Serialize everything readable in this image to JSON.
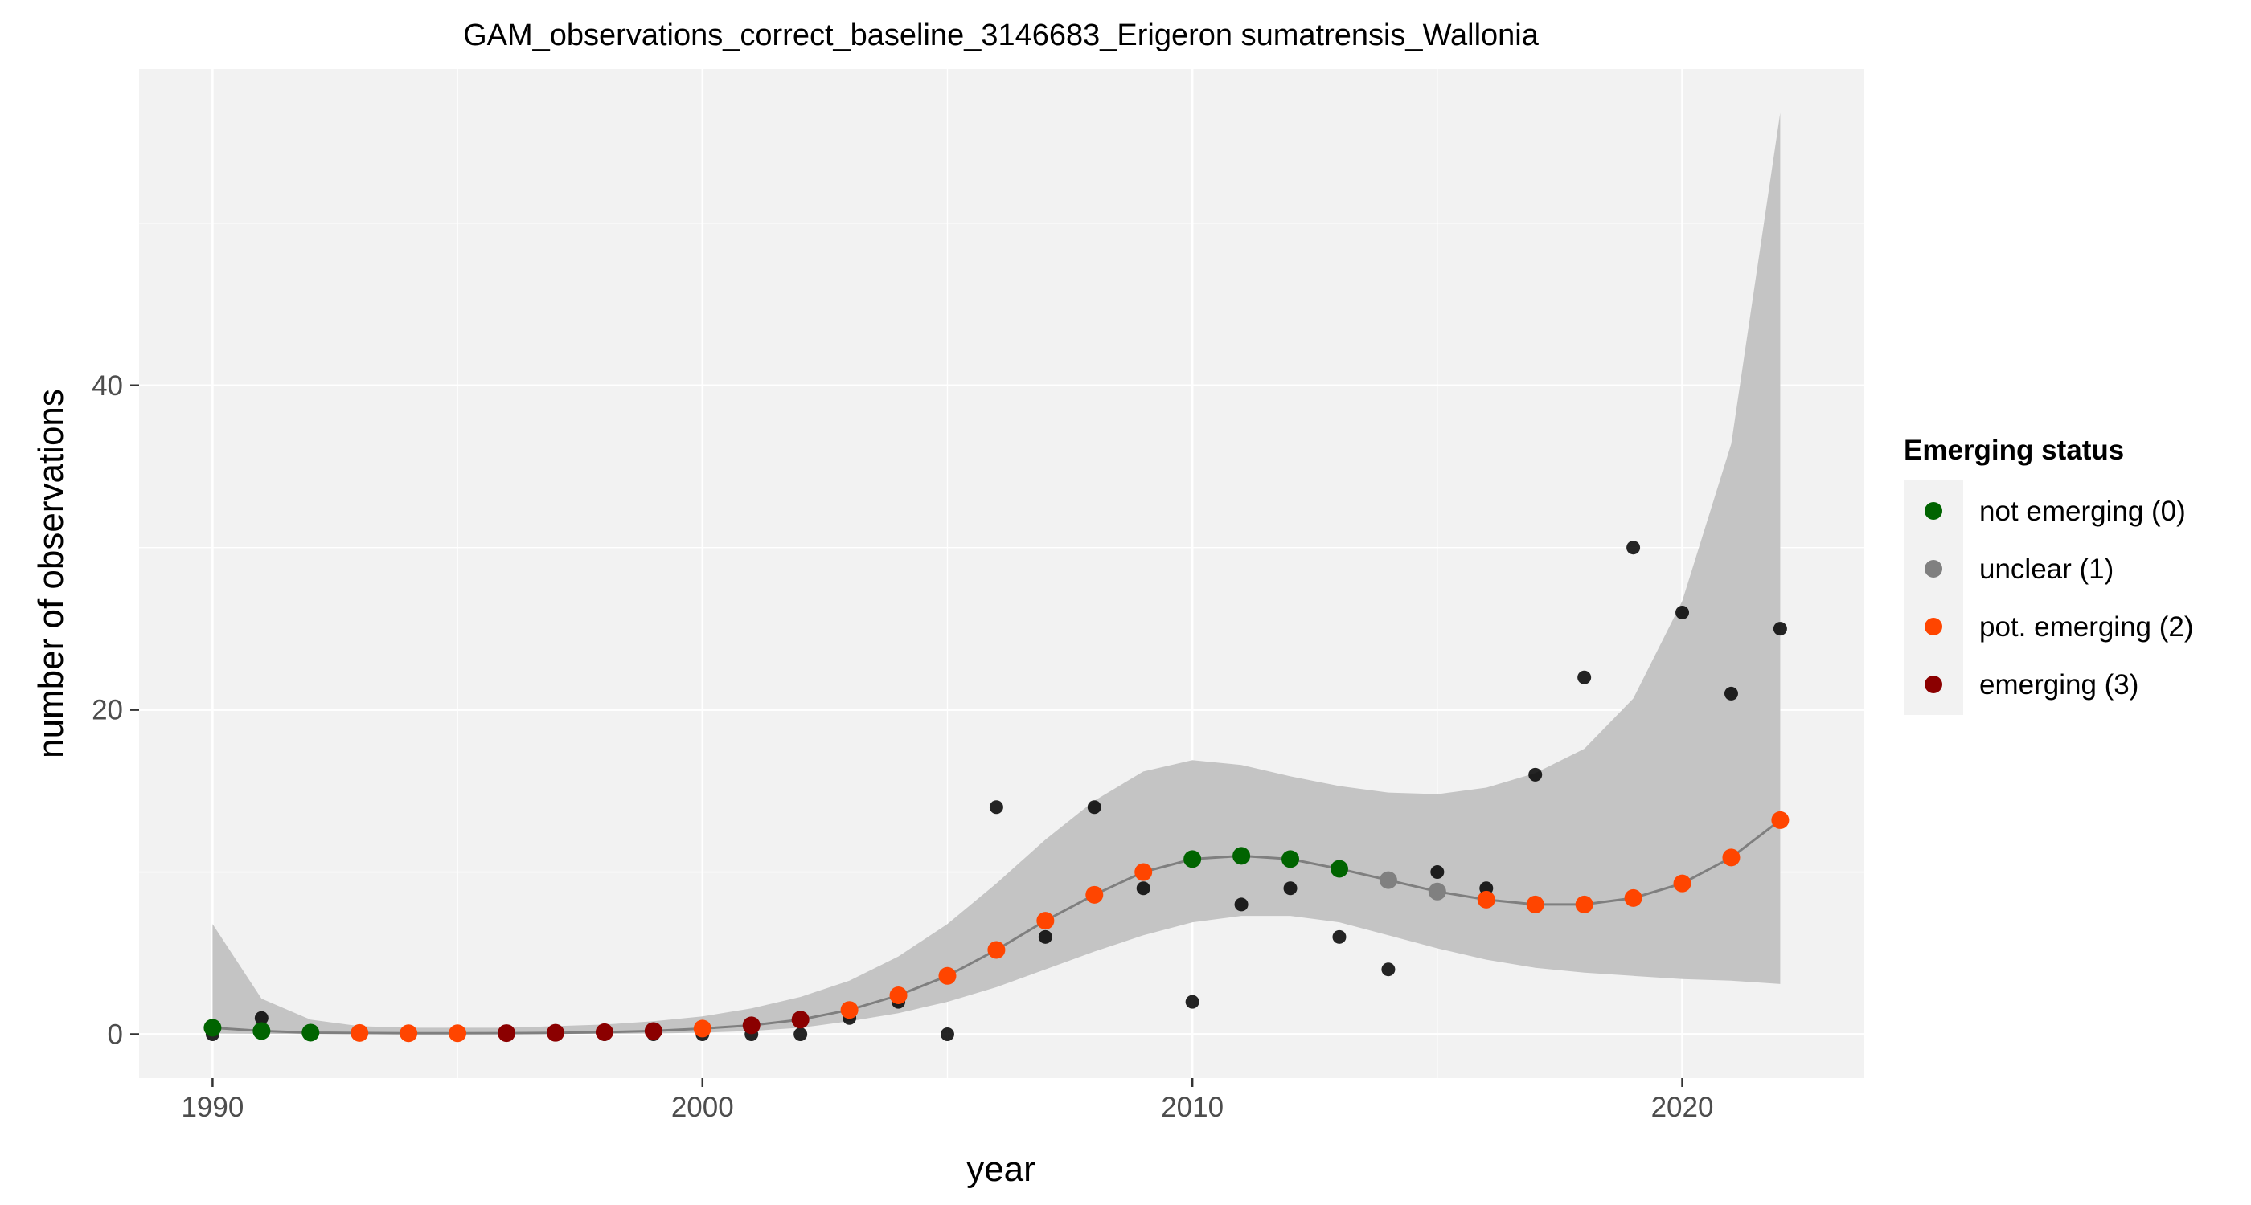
{
  "chart_data": {
    "type": "scatter",
    "title": "GAM_observations_correct_baseline_3146683_Erigeron sumatrensis_Wallonia",
    "xlabel": "year",
    "ylabel": "number of observations",
    "xlim": [
      1988.5,
      2023.7
    ],
    "ylim": [
      -2.7,
      59.5
    ],
    "x_ticks": [
      1990,
      2000,
      2010,
      2020
    ],
    "y_ticks": [
      0,
      20,
      40
    ],
    "grid": true,
    "legend": {
      "title": "Emerging status",
      "placement": "right",
      "entries": [
        {
          "label": "not emerging (0)",
          "color": "#006400"
        },
        {
          "label": "unclear (1)",
          "color": "#808080"
        },
        {
          "label": "pot. emerging (2)",
          "color": "#FF4500"
        },
        {
          "label": "emerging (3)",
          "color": "#8B0000"
        }
      ]
    },
    "observations": [
      {
        "x": 1990,
        "y": 0
      },
      {
        "x": 1991,
        "y": 1
      },
      {
        "x": 1992,
        "y": 0
      },
      {
        "x": 1993,
        "y": 0
      },
      {
        "x": 1994,
        "y": 0
      },
      {
        "x": 1995,
        "y": 0
      },
      {
        "x": 1996,
        "y": 0
      },
      {
        "x": 1997,
        "y": 0
      },
      {
        "x": 1998,
        "y": 0
      },
      {
        "x": 1999,
        "y": 0
      },
      {
        "x": 2000,
        "y": 0
      },
      {
        "x": 2001,
        "y": 0
      },
      {
        "x": 2002,
        "y": 0
      },
      {
        "x": 2003,
        "y": 1
      },
      {
        "x": 2004,
        "y": 2
      },
      {
        "x": 2005,
        "y": 0
      },
      {
        "x": 2006,
        "y": 14
      },
      {
        "x": 2007,
        "y": 6
      },
      {
        "x": 2008,
        "y": 14
      },
      {
        "x": 2009,
        "y": 9
      },
      {
        "x": 2010,
        "y": 2
      },
      {
        "x": 2011,
        "y": 8
      },
      {
        "x": 2012,
        "y": 9
      },
      {
        "x": 2013,
        "y": 6
      },
      {
        "x": 2014,
        "y": 4
      },
      {
        "x": 2015,
        "y": 10
      },
      {
        "x": 2016,
        "y": 9
      },
      {
        "x": 2017,
        "y": 16
      },
      {
        "x": 2018,
        "y": 22
      },
      {
        "x": 2019,
        "y": 30
      },
      {
        "x": 2020,
        "y": 26
      },
      {
        "x": 2021,
        "y": 21
      },
      {
        "x": 2022,
        "y": 25
      }
    ],
    "fit": [
      {
        "x": 1990,
        "y": 0.4,
        "lower": 0.05,
        "upper": 6.8,
        "status": 0
      },
      {
        "x": 1991,
        "y": 0.2,
        "lower": 0.03,
        "upper": 2.2,
        "status": 0
      },
      {
        "x": 1992,
        "y": 0.1,
        "lower": 0.02,
        "upper": 0.9,
        "status": 0
      },
      {
        "x": 1993,
        "y": 0.08,
        "lower": 0.01,
        "upper": 0.5,
        "status": 2
      },
      {
        "x": 1994,
        "y": 0.06,
        "lower": 0.01,
        "upper": 0.4,
        "status": 2
      },
      {
        "x": 1995,
        "y": 0.06,
        "lower": 0.01,
        "upper": 0.4,
        "status": 2
      },
      {
        "x": 1996,
        "y": 0.07,
        "lower": 0.01,
        "upper": 0.4,
        "status": 3
      },
      {
        "x": 1997,
        "y": 0.09,
        "lower": 0.02,
        "upper": 0.5,
        "status": 3
      },
      {
        "x": 1998,
        "y": 0.13,
        "lower": 0.03,
        "upper": 0.6,
        "status": 3
      },
      {
        "x": 1999,
        "y": 0.2,
        "lower": 0.05,
        "upper": 0.8,
        "status": 3
      },
      {
        "x": 2000,
        "y": 0.35,
        "lower": 0.1,
        "upper": 1.1,
        "status": 2
      },
      {
        "x": 2001,
        "y": 0.55,
        "lower": 0.2,
        "upper": 1.6,
        "status": 3
      },
      {
        "x": 2002,
        "y": 0.9,
        "lower": 0.4,
        "upper": 2.3,
        "status": 3
      },
      {
        "x": 2003,
        "y": 1.5,
        "lower": 0.8,
        "upper": 3.3,
        "status": 2
      },
      {
        "x": 2004,
        "y": 2.4,
        "lower": 1.3,
        "upper": 4.8,
        "status": 2
      },
      {
        "x": 2005,
        "y": 3.6,
        "lower": 2.0,
        "upper": 6.8,
        "status": 2
      },
      {
        "x": 2006,
        "y": 5.2,
        "lower": 2.9,
        "upper": 9.3,
        "status": 2
      },
      {
        "x": 2007,
        "y": 7.0,
        "lower": 4.0,
        "upper": 12.0,
        "status": 2
      },
      {
        "x": 2008,
        "y": 8.6,
        "lower": 5.1,
        "upper": 14.4,
        "status": 2
      },
      {
        "x": 2009,
        "y": 10.0,
        "lower": 6.1,
        "upper": 16.2,
        "status": 2
      },
      {
        "x": 2010,
        "y": 10.8,
        "lower": 6.9,
        "upper": 16.9,
        "status": 0
      },
      {
        "x": 2011,
        "y": 11.0,
        "lower": 7.3,
        "upper": 16.6,
        "status": 0
      },
      {
        "x": 2012,
        "y": 10.8,
        "lower": 7.3,
        "upper": 15.9,
        "status": 0
      },
      {
        "x": 2013,
        "y": 10.2,
        "lower": 6.9,
        "upper": 15.3,
        "status": 0
      },
      {
        "x": 2014,
        "y": 9.5,
        "lower": 6.1,
        "upper": 14.9,
        "status": 1
      },
      {
        "x": 2015,
        "y": 8.8,
        "lower": 5.3,
        "upper": 14.8,
        "status": 1
      },
      {
        "x": 2016,
        "y": 8.3,
        "lower": 4.6,
        "upper": 15.2,
        "status": 2
      },
      {
        "x": 2017,
        "y": 8.0,
        "lower": 4.1,
        "upper": 16.1,
        "status": 2
      },
      {
        "x": 2018,
        "y": 8.0,
        "lower": 3.8,
        "upper": 17.6,
        "status": 2
      },
      {
        "x": 2019,
        "y": 8.4,
        "lower": 3.6,
        "upper": 20.7,
        "status": 2
      },
      {
        "x": 2020,
        "y": 9.3,
        "lower": 3.4,
        "upper": 26.7,
        "status": 2
      },
      {
        "x": 2021,
        "y": 10.9,
        "lower": 3.3,
        "upper": 36.4,
        "status": 2
      },
      {
        "x": 2022,
        "y": 13.2,
        "lower": 3.1,
        "upper": 56.8,
        "status": 2
      }
    ]
  }
}
